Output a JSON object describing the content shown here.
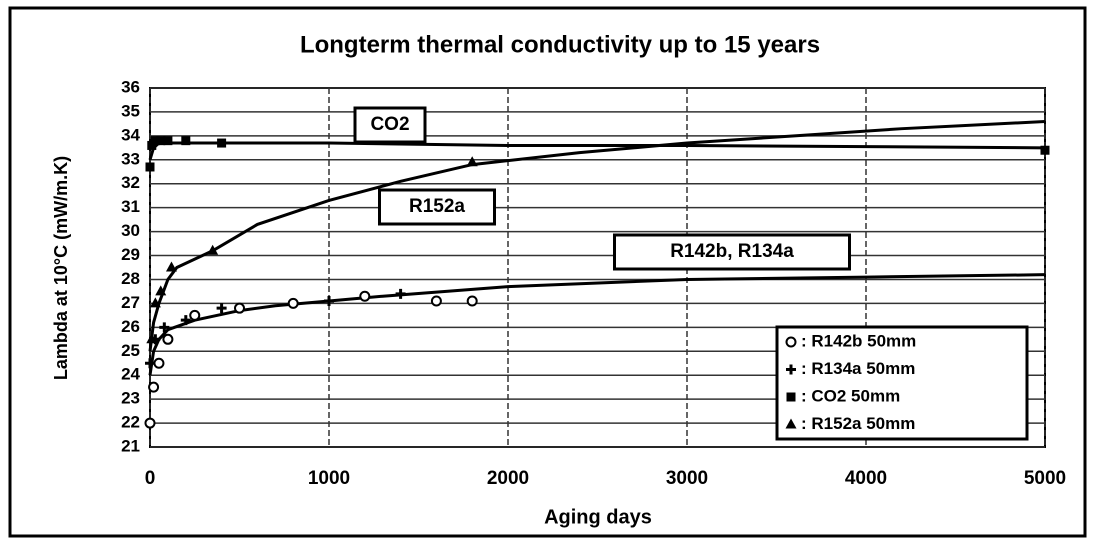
{
  "chart_data": {
    "type": "line",
    "title": "Longterm thermal conductivity up to 15 years",
    "x_label": "Aging days",
    "y_label": "Lambda at 10°C (mW/m.K)",
    "xlim": [
      0,
      5000
    ],
    "xticks": [
      0,
      1000,
      2000,
      3000,
      4000,
      5000
    ],
    "ylim": [
      21,
      36
    ],
    "yticks": [
      21,
      22,
      23,
      24,
      25,
      26,
      27,
      28,
      29,
      30,
      31,
      32,
      33,
      34,
      35,
      36
    ],
    "grid": true,
    "annotations": [
      "CO2",
      "R152a",
      "R142b, R134a"
    ],
    "curves": [
      {
        "x": [
          0,
          20,
          50,
          100,
          300,
          1000,
          2000,
          3000,
          4000,
          5000
        ],
        "values": [
          33.0,
          33.5,
          33.7,
          33.7,
          33.7,
          33.7,
          33.6,
          33.6,
          33.55,
          33.5
        ]
      },
      {
        "x": [
          0,
          20,
          50,
          100,
          150,
          350,
          600,
          1000,
          1400,
          1800,
          2400,
          3000,
          3600,
          4200,
          5000
        ],
        "values": [
          25.0,
          26.2,
          27.0,
          28.0,
          28.5,
          29.2,
          30.3,
          31.3,
          32.1,
          32.8,
          33.3,
          33.7,
          34.0,
          34.3,
          34.6
        ]
      },
      {
        "x": [
          0,
          20,
          50,
          100,
          250,
          500,
          700,
          1000,
          1300,
          2000,
          3000,
          4000,
          5000
        ],
        "values": [
          24.0,
          25.0,
          25.5,
          25.9,
          26.3,
          26.7,
          26.9,
          27.1,
          27.3,
          27.7,
          28.0,
          28.1,
          28.2
        ]
      }
    ],
    "legend_position": "lower right",
    "series": [
      {
        "name": ": R142b 50mm",
        "marker": "circle",
        "color": "#000",
        "x": [
          0,
          20,
          50,
          100,
          250,
          500,
          800,
          1200,
          1600,
          1800
        ],
        "values": [
          22.0,
          23.5,
          24.5,
          25.5,
          26.5,
          26.8,
          27.0,
          27.3,
          27.1,
          27.1
        ]
      },
      {
        "name": ": R134a 50mm",
        "marker": "plus",
        "color": "#000",
        "x": [
          0,
          30,
          80,
          200,
          400,
          1000,
          1400
        ],
        "values": [
          24.5,
          25.5,
          26.0,
          26.3,
          26.8,
          27.1,
          27.4
        ]
      },
      {
        "name": ": CO2 50mm",
        "marker": "square",
        "color": "#000",
        "x": [
          0,
          10,
          30,
          60,
          100,
          200,
          400,
          5000
        ],
        "values": [
          32.7,
          33.6,
          33.8,
          33.8,
          33.8,
          33.8,
          33.7,
          33.4
        ]
      },
      {
        "name": ": R152a 50mm",
        "marker": "triangle",
        "color": "#000",
        "x": [
          10,
          30,
          60,
          120,
          350,
          1800
        ],
        "values": [
          25.5,
          27.0,
          27.5,
          28.5,
          29.2,
          32.9
        ]
      }
    ]
  }
}
